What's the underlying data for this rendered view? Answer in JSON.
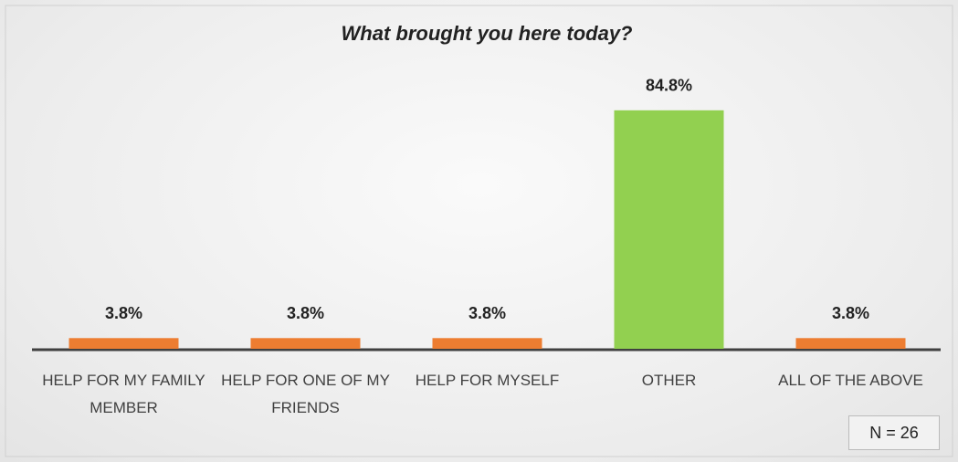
{
  "chart_data": {
    "type": "bar",
    "title": "What brought you here today?",
    "categories": [
      "HELP FOR MY FAMILY MEMBER",
      "HELP FOR ONE OF MY FRIENDS",
      "HELP FOR MYSELF",
      "OTHER",
      "ALL OF THE ABOVE"
    ],
    "values": [
      3.8,
      3.8,
      3.8,
      84.8,
      3.8
    ],
    "value_labels": [
      "3.8%",
      "3.8%",
      "3.8%",
      "84.8%",
      "3.8%"
    ],
    "colors": [
      "#ed7d31",
      "#ed7d31",
      "#ed7d31",
      "#92d050",
      "#ed7d31"
    ],
    "annotation": "N = 26"
  }
}
